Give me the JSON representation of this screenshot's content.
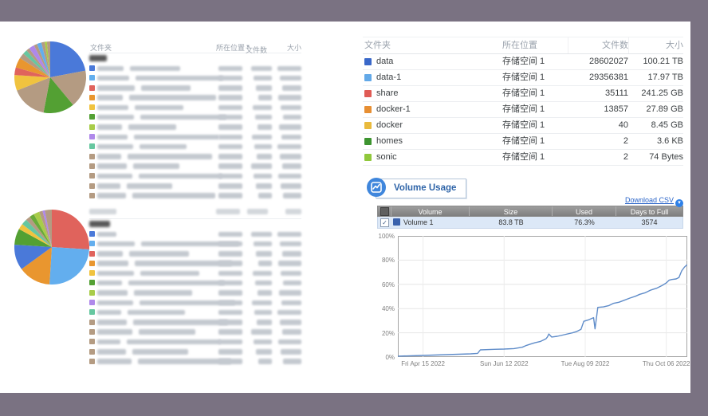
{
  "window": {
    "frame_color": "#7a7282",
    "background": "#ffffff"
  },
  "left_panel": {
    "top_table": {
      "headers": {
        "folder": "文件夹",
        "location": "所在位置",
        "files": "文件数",
        "size": "大小"
      },
      "sort_indicator": "▼",
      "back_label": "返回",
      "row_colors": [
        "#4a79d9",
        "#63aeee",
        "#e0635c",
        "#e9962f",
        "#f0c33f",
        "#53a033",
        "#a8cc49",
        "#af88ea",
        "#66c7a0",
        "#b49b82",
        "#b49b82",
        "#b49b82",
        "#b49b82",
        "#b49b82"
      ]
    },
    "bottom_table": {
      "row_colors": [
        "#4a79d9",
        "#63aeee",
        "#e0635c",
        "#e9962f",
        "#f0c33f",
        "#53a033",
        "#a8cc49",
        "#af88ea",
        "#66c7a0",
        "#b49b82",
        "#b49b82",
        "#b49b82",
        "#b49b82",
        "#b49b82"
      ]
    }
  },
  "right_panel": {
    "folder_table": {
      "headers": [
        "文件夹",
        "所在位置",
        "文件数",
        "大小"
      ],
      "rows": [
        {
          "name": "data",
          "color": "#3a68c9",
          "location": "存储空间 1",
          "files": "28602027",
          "size": "100.21 TB"
        },
        {
          "name": "data-1",
          "color": "#63a9e8",
          "location": "存储空间 1",
          "files": "29356381",
          "size": "17.97 TB"
        },
        {
          "name": "share",
          "color": "#e05b55",
          "location": "存储空间 1",
          "files": "35111",
          "size": "241.25 GB"
        },
        {
          "name": "docker-1",
          "color": "#e78f33",
          "location": "存储空间 1",
          "files": "13857",
          "size": "27.89 GB"
        },
        {
          "name": "docker",
          "color": "#e9ba3d",
          "location": "存储空间 1",
          "files": "40",
          "size": "8.45 GB"
        },
        {
          "name": "homes",
          "color": "#3d9430",
          "location": "存储空间 1",
          "files": "2",
          "size": "3.6 KB"
        },
        {
          "name": "sonic",
          "color": "#90c83c",
          "location": "存储空间 1",
          "files": "2",
          "size": "74 Bytes"
        }
      ]
    },
    "volume_usage": {
      "title": "Volume Usage",
      "download_csv_label": "Download CSV",
      "table": {
        "headers": [
          "Volume",
          "Size",
          "Used",
          "Days to Full"
        ],
        "rows": [
          {
            "checked": true,
            "color": "#3a62ad",
            "name": "Volume 1",
            "size": "83.8 TB",
            "used": "76.3%",
            "days_to_full": "3574"
          }
        ]
      }
    }
  },
  "chart_data": [
    {
      "type": "pie",
      "title": "folder-size-distribution-top",
      "slices": [
        {
          "color": "#4a79d9",
          "value": 22
        },
        {
          "color": "#b49b82",
          "value": 17
        },
        {
          "color": "#53a033",
          "value": 14
        },
        {
          "color": "#b49b82",
          "value": 16
        },
        {
          "color": "#f0c33f",
          "value": 7
        },
        {
          "color": "#e0635c",
          "value": 3.5
        },
        {
          "color": "#e9962f",
          "value": 4.5
        },
        {
          "color": "#b49b82",
          "value": 2.5
        },
        {
          "color": "#66c7a0",
          "value": 2
        },
        {
          "color": "#b49b82",
          "value": 1.5
        },
        {
          "color": "#af88ea",
          "value": 2.5
        },
        {
          "color": "#b49b82",
          "value": 1.5
        },
        {
          "color": "#63aeee",
          "value": 2
        },
        {
          "color": "#b49b82",
          "value": 1.5
        },
        {
          "color": "#a8cc49",
          "value": 1
        },
        {
          "color": "#b49b82",
          "value": 1.5
        }
      ]
    },
    {
      "type": "pie",
      "title": "folder-size-distribution-bottom",
      "slices": [
        {
          "color": "#e0635c",
          "value": 26
        },
        {
          "color": "#63aeee",
          "value": 25
        },
        {
          "color": "#e9962f",
          "value": 14
        },
        {
          "color": "#4a79d9",
          "value": 11
        },
        {
          "color": "#53a033",
          "value": 7
        },
        {
          "color": "#f0c33f",
          "value": 2.5
        },
        {
          "color": "#66c7a0",
          "value": 2.5
        },
        {
          "color": "#b49b82",
          "value": 2
        },
        {
          "color": "#6aaa3a",
          "value": 2
        },
        {
          "color": "#a8cc49",
          "value": 2.5
        },
        {
          "color": "#b49b82",
          "value": 1.5
        },
        {
          "color": "#af88ea",
          "value": 1
        },
        {
          "color": "#b49b82",
          "value": 3
        }
      ]
    },
    {
      "type": "line",
      "title": "volume-usage-over-time",
      "line_color": "#5f8cc9",
      "ylim": [
        0,
        100
      ],
      "yticks": [
        "0%",
        "20%",
        "40%",
        "60%",
        "80%",
        "100%"
      ],
      "x_domain": [
        "2022-03-28",
        "2022-10-21"
      ],
      "xticks": [
        {
          "label": "Fri Apr 15 2022",
          "date": "2022-04-15"
        },
        {
          "label": "Sun Jun 12 2022",
          "date": "2022-06-12"
        },
        {
          "label": "Tue Aug 09 2022",
          "date": "2022-08-09"
        },
        {
          "label": "Thu Oct 06 2022",
          "date": "2022-10-06"
        }
      ],
      "series": [
        {
          "name": "Volume 1",
          "points": [
            [
              "2022-03-28",
              0.7
            ],
            [
              "2022-04-15",
              1.3
            ],
            [
              "2022-05-02",
              2.0
            ],
            [
              "2022-05-19",
              2.6
            ],
            [
              "2022-05-24",
              3.0
            ],
            [
              "2022-05-26",
              5.9
            ],
            [
              "2022-06-05",
              6.4
            ],
            [
              "2022-06-12",
              6.6
            ],
            [
              "2022-06-19",
              7.0
            ],
            [
              "2022-06-25",
              8.1
            ],
            [
              "2022-06-28",
              9.6
            ],
            [
              "2022-07-01",
              10.7
            ],
            [
              "2022-07-04",
              11.8
            ],
            [
              "2022-07-08",
              12.9
            ],
            [
              "2022-07-10",
              14.0
            ],
            [
              "2022-07-12",
              15.1
            ],
            [
              "2022-07-13",
              16.6
            ],
            [
              "2022-07-14",
              19.0
            ],
            [
              "2022-07-16",
              16.5
            ],
            [
              "2022-07-20",
              17.1
            ],
            [
              "2022-07-25",
              18.4
            ],
            [
              "2022-07-31",
              20.0
            ],
            [
              "2022-08-03",
              21.1
            ],
            [
              "2022-08-06",
              22.8
            ],
            [
              "2022-08-08",
              29.5
            ],
            [
              "2022-08-11",
              30.5
            ],
            [
              "2022-08-15",
              32.5
            ],
            [
              "2022-08-16",
              23.2
            ],
            [
              "2022-08-18",
              41.0
            ],
            [
              "2022-08-22",
              41.4
            ],
            [
              "2022-08-26",
              42.5
            ],
            [
              "2022-08-29",
              44.3
            ],
            [
              "2022-09-02",
              45.2
            ],
            [
              "2022-09-06",
              46.9
            ],
            [
              "2022-09-10",
              48.7
            ],
            [
              "2022-09-14",
              50.2
            ],
            [
              "2022-09-17",
              51.8
            ],
            [
              "2022-09-21",
              53.1
            ],
            [
              "2022-09-25",
              55.3
            ],
            [
              "2022-09-29",
              56.8
            ],
            [
              "2022-10-03",
              59.0
            ],
            [
              "2022-10-06",
              61.2
            ],
            [
              "2022-10-08",
              63.4
            ],
            [
              "2022-10-10",
              64.0
            ],
            [
              "2022-10-13",
              64.5
            ],
            [
              "2022-10-15",
              65.6
            ],
            [
              "2022-10-17",
              71.1
            ],
            [
              "2022-10-19",
              74.3
            ],
            [
              "2022-10-21",
              76.3
            ]
          ]
        }
      ]
    }
  ]
}
